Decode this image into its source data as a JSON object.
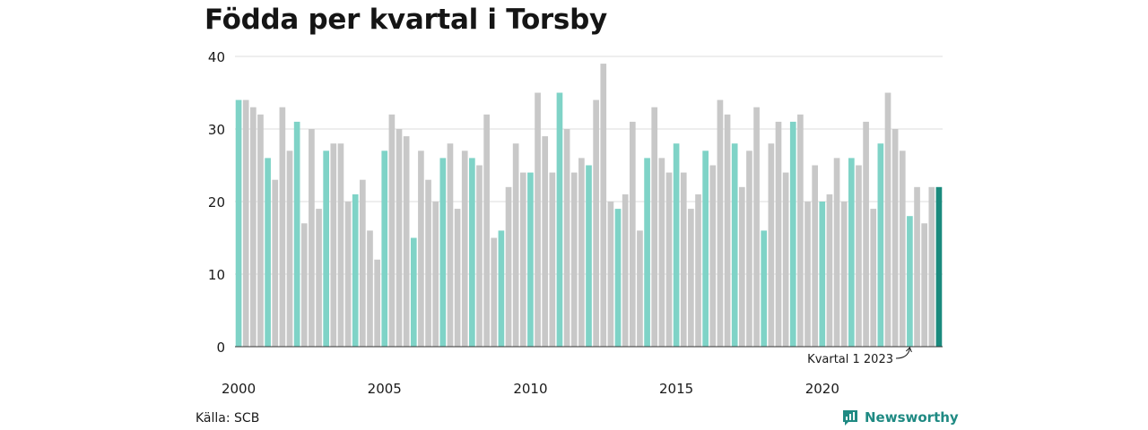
{
  "title": "Födda per kvartal i Torsby",
  "source": "Källa: SCB",
  "brand": {
    "name": "Newsworthy",
    "icon": "newsworthy-logo-icon"
  },
  "colors": {
    "q1": "#7fd3c7",
    "other": "#c8c8c8",
    "highlight": "#1a8a7d",
    "grid": "#dddddd",
    "axis": "#333333",
    "brand": "#1f8a83"
  },
  "chart_data": {
    "type": "bar",
    "title": "Födda per kvartal i Torsby",
    "xlabel": "",
    "ylabel": "",
    "ylim": [
      0,
      40
    ],
    "yticks": [
      "0",
      "10",
      "20",
      "30",
      "40"
    ],
    "xtick_labels": [
      "2000",
      "2005",
      "2010",
      "2015",
      "2020"
    ],
    "xtick_years": [
      2000,
      2005,
      2010,
      2015,
      2020
    ],
    "start_year": 2000,
    "grid": true,
    "annotation": {
      "text": "Kvartal 1 2023",
      "year": 2023,
      "quarter": 1
    },
    "values": [
      34,
      34,
      33,
      32,
      26,
      23,
      33,
      27,
      31,
      17,
      30,
      19,
      27,
      28,
      28,
      20,
      21,
      23,
      16,
      12,
      27,
      32,
      30,
      29,
      15,
      27,
      23,
      20,
      26,
      28,
      19,
      27,
      26,
      25,
      32,
      15,
      16,
      22,
      28,
      24,
      24,
      35,
      29,
      24,
      35,
      30,
      24,
      26,
      25,
      34,
      39,
      20,
      19,
      21,
      31,
      16,
      26,
      33,
      26,
      24,
      28,
      24,
      19,
      21,
      27,
      25,
      34,
      32,
      28,
      22,
      27,
      33,
      16,
      28,
      31,
      24,
      31,
      32,
      20,
      25,
      20,
      21,
      26,
      20,
      26,
      25,
      31,
      19,
      28,
      35,
      30,
      27,
      18,
      22,
      17,
      22,
      22
    ]
  }
}
